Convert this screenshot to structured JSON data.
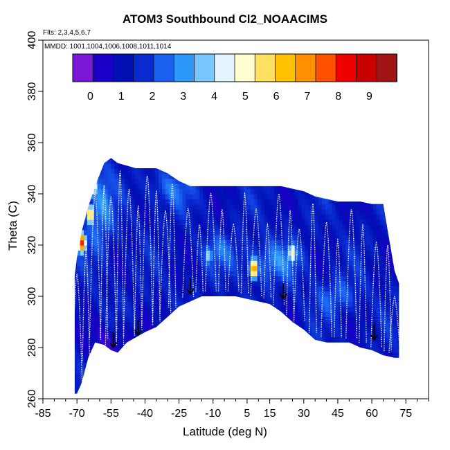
{
  "chart_data": {
    "type": "heatmap",
    "title": "ATOM3 Southbound Cl2_NOAACIMS",
    "subtitle_flights": "Flts: 2,3,4,5,6,7",
    "subtitle_dates": "MMDD: 1001,1004,1006,1008,1011,1014",
    "xlabel": "Latitude (deg N)",
    "ylabel": "Theta (C)",
    "xlim": [
      -85,
      85
    ],
    "ylim": [
      260,
      400
    ],
    "x_ticks": [
      -85,
      -70,
      -55,
      -40,
      -25,
      -10,
      5,
      15,
      30,
      45,
      60,
      75
    ],
    "y_ticks": [
      260,
      280,
      300,
      320,
      340,
      360,
      380,
      400
    ],
    "colorbar": {
      "labels": [
        "0",
        "1",
        "2",
        "3",
        "4",
        "5",
        "6",
        "7",
        "8",
        "9"
      ],
      "range": [
        -0.5,
        9.5
      ],
      "colors": [
        "#7a17d6",
        "#1a00c8",
        "#0010b4",
        "#0a2ad0",
        "#1a60f0",
        "#2c98fa",
        "#7cc6ff",
        "#e4f4ff",
        "#ffffd2",
        "#ffe060",
        "#ffc000",
        "#ff9000",
        "#ff5000",
        "#ee0000",
        "#c80000",
        "#a01414"
      ]
    },
    "data_envelope": {
      "lat": [
        -71,
        -70,
        -68,
        -65,
        -62,
        -58,
        -55,
        -52,
        -48,
        -44,
        -40,
        -35,
        -30,
        -25,
        -20,
        -15,
        -10,
        -5,
        0,
        5,
        10,
        15,
        20,
        25,
        30,
        35,
        40,
        45,
        50,
        55,
        60,
        65,
        70,
        72
      ],
      "theta_min": [
        262,
        262,
        266,
        276,
        282,
        281,
        279,
        278,
        282,
        284,
        286,
        288,
        292,
        296,
        298,
        300,
        300,
        300,
        300,
        299,
        298,
        297,
        294,
        290,
        287,
        283,
        282,
        282,
        282,
        280,
        279,
        277,
        276,
        276
      ],
      "theta_max": [
        308,
        315,
        325,
        335,
        343,
        352,
        354,
        352,
        351,
        350,
        350,
        350,
        348,
        345,
        343,
        343,
        343,
        343,
        343,
        343,
        343,
        343,
        343,
        342,
        341,
        339,
        338,
        337,
        337,
        337,
        336,
        336,
        310,
        305
      ]
    },
    "hotspots": [
      {
        "lat": -68,
        "theta": 321,
        "value": 8.0
      },
      {
        "lat": -63,
        "theta": 343,
        "value": 5.8
      },
      {
        "lat": -64,
        "theta": 332,
        "value": 6.2
      },
      {
        "lat": 8,
        "theta": 311,
        "value": 7.2
      },
      {
        "lat": 25,
        "theta": 317,
        "value": 5.2
      },
      {
        "lat": -12,
        "theta": 316,
        "value": 3.8
      }
    ],
    "profile_latitudes": [
      -74,
      -70,
      -66,
      -62,
      -58,
      -55,
      -51,
      -47,
      -43,
      -39,
      -35,
      -31,
      -28,
      -21,
      -16,
      -11,
      -6,
      -1,
      4,
      9,
      14,
      19,
      24,
      28,
      34,
      40,
      45,
      51,
      56,
      62,
      67,
      70
    ],
    "arrow_markers": [
      {
        "lat": -54,
        "theta": 286
      },
      {
        "lat": -43,
        "theta": 291
      },
      {
        "lat": -20,
        "theta": 307
      },
      {
        "lat": 21,
        "theta": 305
      },
      {
        "lat": 61,
        "theta": 289
      }
    ]
  }
}
